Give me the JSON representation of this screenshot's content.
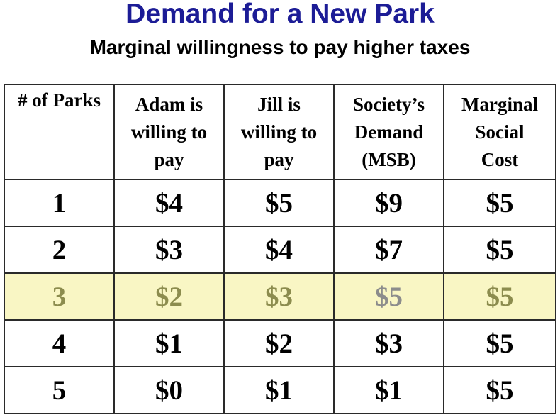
{
  "title": "Demand for a New Park",
  "subtitle": "Marginal willingness to pay higher taxes",
  "headers": {
    "parks": "# of Parks",
    "adam": [
      "Adam is",
      "willing to",
      "pay"
    ],
    "jill": [
      "Jill is",
      "willing to",
      "pay"
    ],
    "society": [
      "Society’s",
      "Demand",
      "(MSB)"
    ],
    "cost": [
      "Marginal",
      "Social",
      "Cost"
    ]
  },
  "rows": [
    {
      "parks": "1",
      "adam": "$4",
      "jill": "$5",
      "society": "$9",
      "cost": "$5"
    },
    {
      "parks": "2",
      "adam": "$3",
      "jill": "$4",
      "society": "$7",
      "cost": "$5"
    },
    {
      "parks": "3",
      "adam": "$2",
      "jill": "$3",
      "society": "$5",
      "cost": "$5"
    },
    {
      "parks": "4",
      "adam": "$1",
      "jill": "$2",
      "society": "$3",
      "cost": "$5"
    },
    {
      "parks": "5",
      "adam": "$0",
      "jill": "$1",
      "society": "$1",
      "cost": "$5"
    }
  ],
  "highlighted_row": "3",
  "colors": {
    "title": "#1c1c96",
    "society_column": "#1c1c96",
    "highlight_background": "#f9f6c4",
    "highlight_text": "#8c8c4e"
  }
}
